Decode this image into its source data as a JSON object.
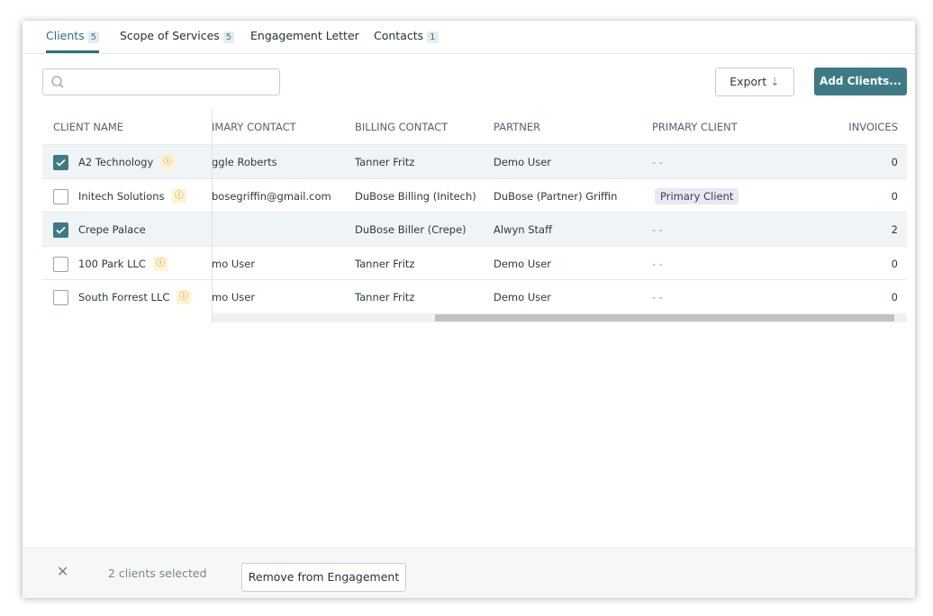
{
  "tabs": [
    {
      "label": "Clients",
      "count": "5",
      "active": true
    },
    {
      "label": "Scope of Services",
      "count": "5",
      "active": false
    },
    {
      "label": "Engagement Letter",
      "count": null,
      "active": false
    },
    {
      "label": "Contacts",
      "count": "1",
      "active": false
    }
  ],
  "toolbar": {
    "export": "Export",
    "add": "Add Clients..."
  },
  "table": {
    "headers": [
      "CLIENT NAME",
      "IMARY CONTACT",
      "BILLING CONTACT",
      "PARTNER",
      "PRIMARY CLIENT",
      "INVOICES"
    ],
    "rows": [
      {
        "checked": true,
        "warning": true,
        "cells": [
          "A2 Technology",
          "ggle Roberts",
          "Tanner Fritz",
          "Demo User",
          "- -",
          "0"
        ],
        "badge": false
      },
      {
        "checked": false,
        "warning": true,
        "cells": [
          "Initech Solutions",
          "bosegriffin@gmail.com",
          "DuBose Billing (Initech)",
          "DuBose (Partner) Griffin",
          "Primary Client",
          "0"
        ],
        "badge": true
      },
      {
        "checked": true,
        "warning": false,
        "cells": [
          "Crepe Palace",
          "",
          "DuBose Biller (Crepe)",
          "Alwyn Staff",
          "- -",
          "2"
        ],
        "badge": false
      },
      {
        "checked": false,
        "warning": true,
        "cells": [
          "100 Park LLC",
          "mo User",
          "Tanner Fritz",
          "Demo User",
          "- -",
          "0"
        ],
        "badge": false
      },
      {
        "checked": false,
        "warning": true,
        "cells": [
          "South Forrest LLC",
          "mo User",
          "Tanner Fritz",
          "Demo User",
          "- -",
          "0"
        ],
        "badge": false
      }
    ]
  },
  "footer": {
    "selected": "2 clients selected",
    "remove": "Remove from Engagement"
  }
}
